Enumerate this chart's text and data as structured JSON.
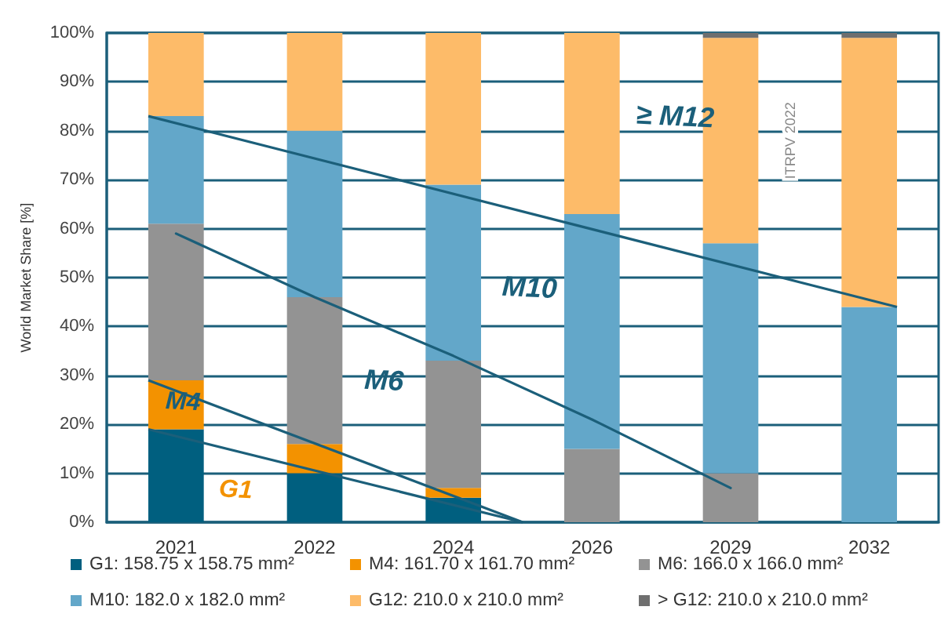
{
  "chart_data": {
    "type": "bar",
    "stacked": true,
    "ylabel": "World Market Share [%]",
    "categories": [
      "2021",
      "2022",
      "2024",
      "2026",
      "2029",
      "2032"
    ],
    "series": [
      {
        "name": "G1: 158.75 x 158.75 mm²",
        "color": "#005f7f",
        "values": [
          19,
          10,
          5,
          0,
          0,
          0
        ]
      },
      {
        "name": "M4: 161.70 x 161.70 mm²",
        "color": "#f39200",
        "values": [
          10,
          6,
          2,
          0,
          0,
          0
        ]
      },
      {
        "name": "M6: 166.0 x 166.0 mm²",
        "color": "#939393",
        "values": [
          32,
          30,
          26,
          15,
          10,
          0
        ]
      },
      {
        "name": "M10: 182.0 x 182.0 mm²",
        "color": "#63a7c9",
        "values": [
          22,
          34,
          36,
          48,
          47,
          44
        ]
      },
      {
        "name": "G12: 210.0 x 210.0 mm²",
        "color": "#fdbb69",
        "values": [
          17,
          20,
          31,
          37,
          42,
          55
        ]
      },
      {
        "name": "> G12: 210.0 x 210.0 mm²",
        "color": "#6f6f6f",
        "values": [
          0,
          0,
          0,
          0,
          1,
          1
        ]
      },
      {
        "type": "line",
        "color": "#1b5f7a",
        "marker": "none",
        "values": [
          59,
          46,
          34,
          21,
          7,
          null
        ]
      }
    ],
    "ylim": [
      0,
      100
    ],
    "yticks": [
      {
        "value": 0,
        "label": "0%"
      },
      {
        "value": 10,
        "label": "10%"
      },
      {
        "value": 20,
        "label": "20%"
      },
      {
        "value": 30,
        "label": "30%"
      },
      {
        "value": 40,
        "label": "40%"
      },
      {
        "value": 50,
        "label": "50%"
      },
      {
        "value": 60,
        "label": "60%"
      },
      {
        "value": 70,
        "label": "70%"
      },
      {
        "value": 80,
        "label": "80%"
      },
      {
        "value": 90,
        "label": "90%"
      },
      {
        "value": 100,
        "label": "100%"
      }
    ],
    "grid": "y",
    "legend": "bottom",
    "annotations": [
      "G1",
      "M4",
      "M6",
      "M10",
      "≥ M12",
      "ITRPV 2022"
    ]
  }
}
